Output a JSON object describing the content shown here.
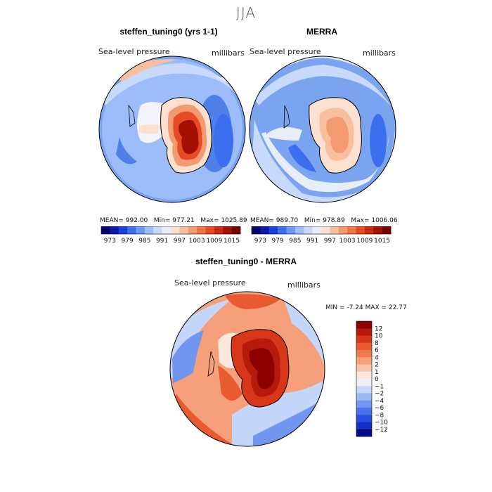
{
  "figure_title": "JJA",
  "chart_data": [
    {
      "type": "heatmap",
      "projection": "south-polar-stereographic",
      "title": "steffen_tuning0 (yrs 1-1)",
      "variable": "Sea-level pressure",
      "units": "millibars",
      "stats": {
        "mean_label": "MEAN=",
        "mean": "992.00",
        "min_label": "Min=",
        "min": "977.21",
        "max_label": "Max=",
        "max": "1025.89"
      }
    },
    {
      "type": "heatmap",
      "projection": "south-polar-stereographic",
      "title": "MERRA",
      "variable": "Sea-level pressure",
      "units": "millibars",
      "stats": {
        "mean_label": "MEAN=",
        "mean": "989.70",
        "min_label": "Min=",
        "min": "978.89",
        "max_label": "Max=",
        "max": "1006.06"
      }
    },
    {
      "type": "heatmap",
      "projection": "south-polar-stereographic",
      "title": "steffen_tuning0 - MERRA",
      "variable": "Sea-level pressure",
      "units": "millibars",
      "stats": {
        "min_label": "MIN =",
        "min": "-7.24",
        "max_label": "MAX =",
        "max": "22.77"
      }
    }
  ],
  "shared_colorbar": {
    "ticks": [
      "973",
      "979",
      "985",
      "991",
      "997",
      "1003",
      "1009",
      "1015"
    ],
    "colors": [
      "#06056e",
      "#0b19a8",
      "#1940dc",
      "#3b6ff0",
      "#6b97f5",
      "#9dbdfa",
      "#c8dafc",
      "#e8eef8",
      "#fce0d0",
      "#f8bf9e",
      "#f49a70",
      "#ef7448",
      "#e64b25",
      "#cc2a10",
      "#a51005",
      "#770000"
    ]
  },
  "diff_colorbar": {
    "labels": [
      "12",
      "10",
      "8",
      "6",
      "4",
      "2",
      "1",
      "0",
      "−1",
      "−2",
      "−4",
      "−6",
      "−8",
      "−10",
      "−12"
    ],
    "colors": [
      "#8a0000",
      "#b51a0a",
      "#d8361a",
      "#ea5a30",
      "#f07a50",
      "#f5a07a",
      "#f8c4a8",
      "#fbe7dc",
      "#eef1fb",
      "#c5d6fb",
      "#9db8f7",
      "#7296f0",
      "#4a72e8",
      "#284ee0",
      "#1233c6",
      "#07088a"
    ]
  },
  "colors": {
    "bg_blue": "#7ba4f0",
    "mid_blue": "#4f7fe8",
    "deep_blue": "#2a55d8",
    "pale_blue": "#c9dbfb",
    "white": "#f3f4fa",
    "orange": "#f09068",
    "red": "#e0451f",
    "dark_red": "#a81205",
    "land_line": "#000000"
  }
}
